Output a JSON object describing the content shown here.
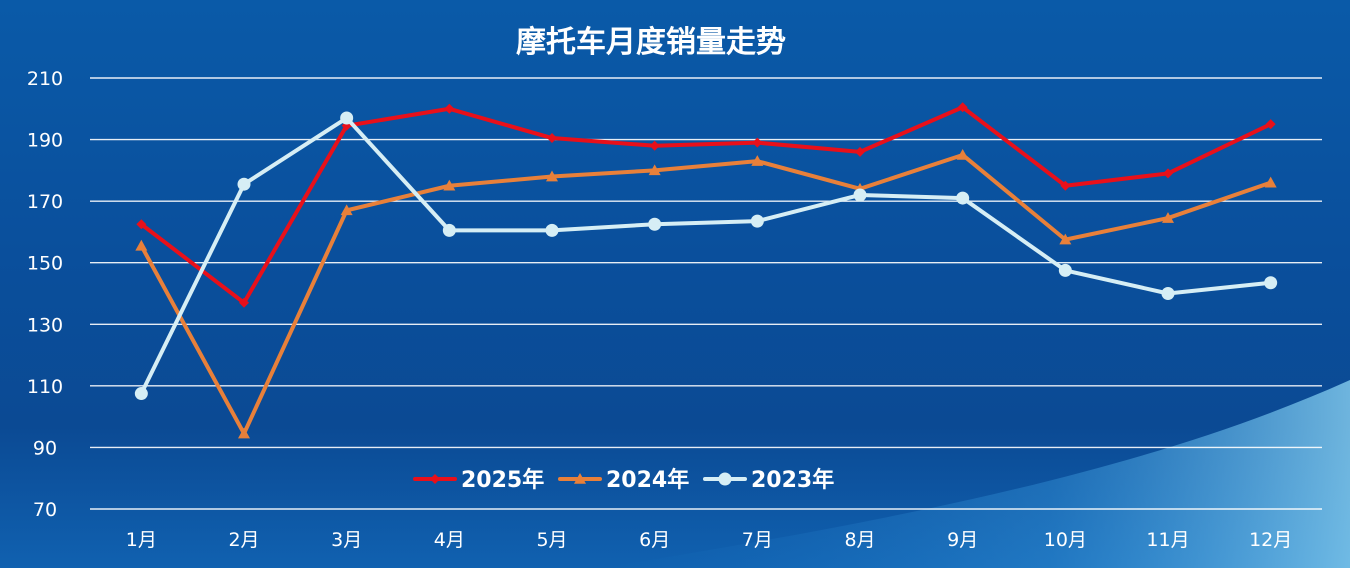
{
  "chart_data": {
    "type": "line",
    "title": "摩托车月度销量走势",
    "categories": [
      "1月",
      "2月",
      "3月",
      "4月",
      "5月",
      "6月",
      "7月",
      "8月",
      "9月",
      "10月",
      "11月",
      "12月"
    ],
    "ylim": [
      70,
      210
    ],
    "yticks": [
      70,
      90,
      110,
      130,
      150,
      170,
      190,
      210
    ],
    "grid": true,
    "legend_position": "bottom-center",
    "series": [
      {
        "name": "2025年",
        "color": "#e8101a",
        "marker": "diamond",
        "values": [
          162.5,
          137,
          194.5,
          200,
          190.5,
          188,
          189,
          186,
          200.5,
          175,
          179,
          195
        ]
      },
      {
        "name": "2024年",
        "color": "#e8803a",
        "marker": "triangle",
        "values": [
          155.5,
          94.5,
          167,
          175,
          178,
          180,
          183,
          174,
          185,
          157.5,
          164.5,
          176
        ]
      },
      {
        "name": "2023年",
        "color": "#d6eef5",
        "marker": "circle",
        "values": [
          107.5,
          175.5,
          197,
          160.5,
          160.5,
          162.5,
          163.5,
          172,
          171,
          147.5,
          140,
          143.5
        ]
      }
    ]
  }
}
